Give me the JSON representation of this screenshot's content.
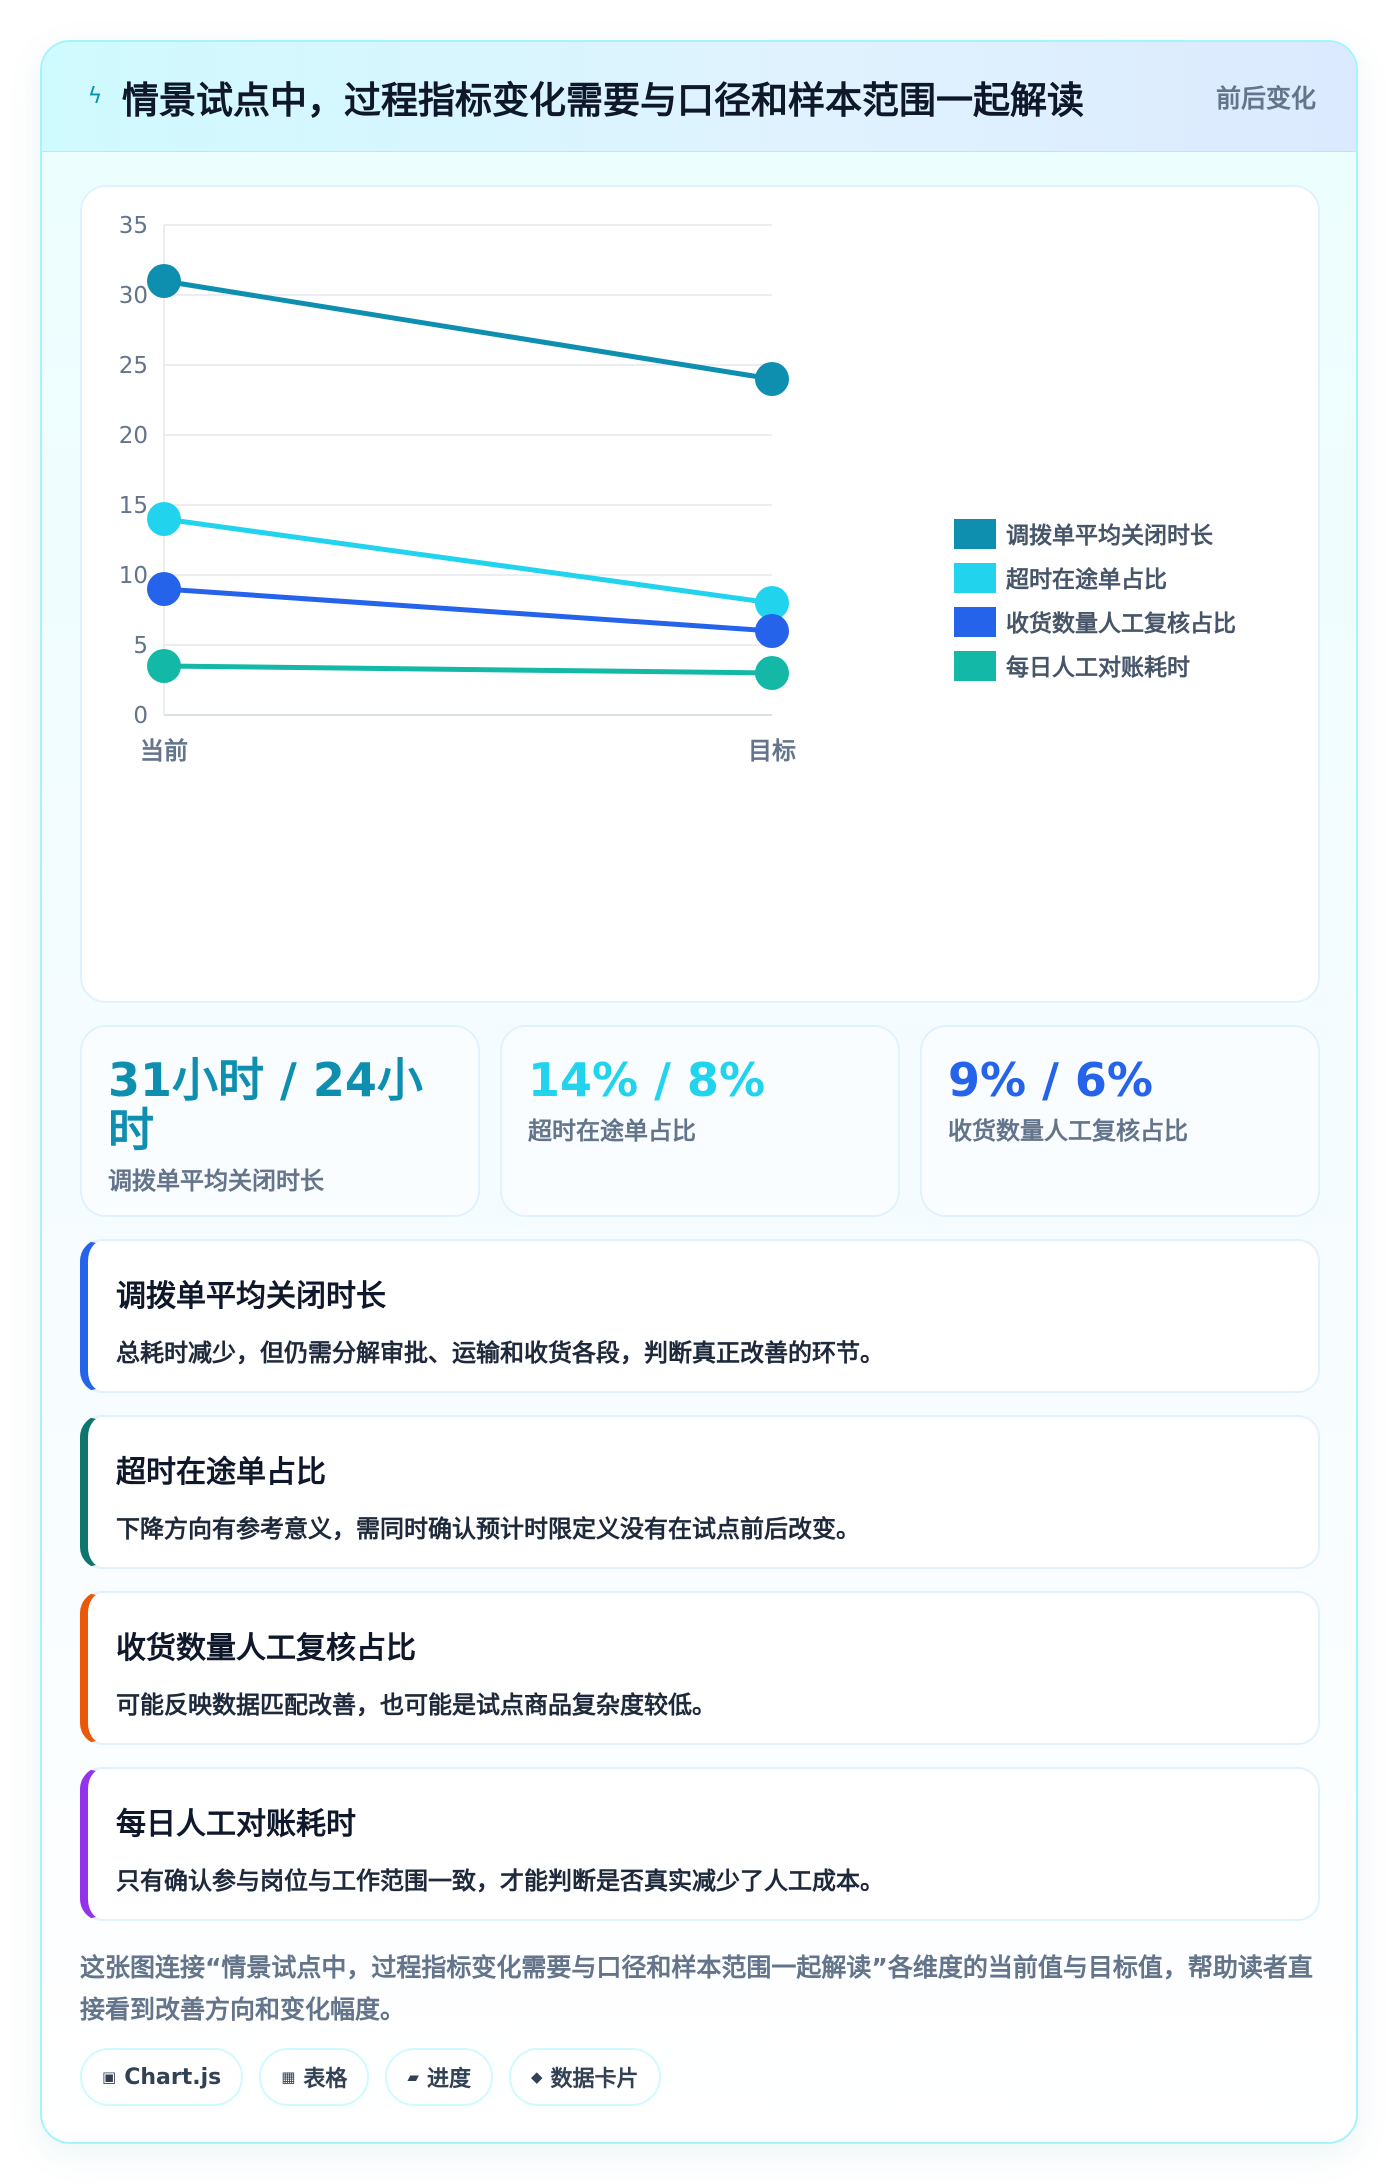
{
  "header": {
    "icon": "lightning-icon",
    "title": "情景试点中，过程指标变化需要与口径和样本范围一起解读",
    "tag": "前后变化"
  },
  "chart_data": {
    "type": "line",
    "x": [
      "当前",
      "目标"
    ],
    "ylim": [
      0,
      35
    ],
    "yticks": [
      0,
      5,
      10,
      15,
      20,
      25,
      30,
      35
    ],
    "grid": true,
    "legend_position": "right",
    "series": [
      {
        "name": "调拨单平均关闭时长",
        "values": [
          31,
          24
        ],
        "color": "#0e8fb0"
      },
      {
        "name": "超时在途单占比",
        "values": [
          14,
          8
        ],
        "color": "#22d3ee"
      },
      {
        "name": "收货数量人工复核占比",
        "values": [
          9,
          6
        ],
        "color": "#2563eb"
      },
      {
        "name": "每日人工对账耗时",
        "values": [
          3.5,
          3
        ],
        "color": "#14b8a6"
      }
    ]
  },
  "kpis": [
    {
      "value": "31小时 / 24小时",
      "label": "调拨单平均关闭时长",
      "color": "#0e8fb0"
    },
    {
      "value": "14% / 8%",
      "label": "超时在途单占比",
      "color": "#22d3ee"
    },
    {
      "value": "9% / 6%",
      "label": "收货数量人工复核占比",
      "color": "#2563eb"
    }
  ],
  "notes": [
    {
      "title": "调拨单平均关闭时长",
      "text": "总耗时减少，但仍需分解审批、运输和收货各段，判断真正改善的环节。",
      "accent": "#2563eb"
    },
    {
      "title": "超时在途单占比",
      "text": "下降方向有参考意义，需同时确认预计时限定义没有在试点前后改变。",
      "accent": "#0f766e"
    },
    {
      "title": "收货数量人工复核占比",
      "text": "可能反映数据匹配改善，也可能是试点商品复杂度较低。",
      "accent": "#ea580c"
    },
    {
      "title": "每日人工对账耗时",
      "text": "只有确认参与岗位与工作范围一致，才能判断是否真实减少了人工成本。",
      "accent": "#9333ea"
    }
  ],
  "summary": "这张图连接“情景试点中，过程指标变化需要与口径和样本范围一起解读”各维度的当前值与目标值，帮助读者直接看到改善方向和变化幅度。",
  "chips": [
    {
      "icon": "chart-icon",
      "glyph": "▣",
      "label": "Chart.js"
    },
    {
      "icon": "table-icon",
      "glyph": "▦",
      "label": "表格"
    },
    {
      "icon": "progress-icon",
      "glyph": "▰",
      "label": "进度"
    },
    {
      "icon": "card-icon",
      "glyph": "◆",
      "label": "数据卡片"
    }
  ]
}
